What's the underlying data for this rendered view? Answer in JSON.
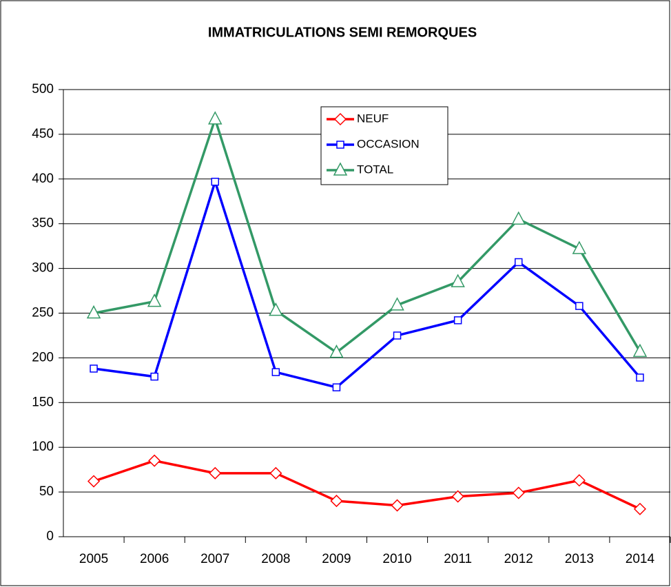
{
  "chart_data": {
    "type": "line",
    "title": "IMMATRICULATIONS SEMI REMORQUES",
    "categories": [
      "2005",
      "2006",
      "2007",
      "2008",
      "2009",
      "2010",
      "2011",
      "2012",
      "2013",
      "2014"
    ],
    "series": [
      {
        "name": "NEUF",
        "color": "#ff0000",
        "marker": "diamond",
        "values": [
          62,
          85,
          71,
          71,
          40,
          35,
          45,
          49,
          63,
          31
        ]
      },
      {
        "name": "OCCASION",
        "color": "#0000ff",
        "marker": "square",
        "values": [
          188,
          179,
          397,
          184,
          167,
          225,
          242,
          307,
          258,
          178
        ]
      },
      {
        "name": "TOTAL",
        "color": "#339966",
        "marker": "triangle",
        "values": [
          250,
          263,
          467,
          253,
          206,
          259,
          285,
          355,
          322,
          207
        ]
      }
    ],
    "ylim": [
      0,
      500
    ],
    "yticks": [
      0,
      50,
      100,
      150,
      200,
      250,
      300,
      350,
      400,
      450,
      500
    ],
    "grid": true
  }
}
